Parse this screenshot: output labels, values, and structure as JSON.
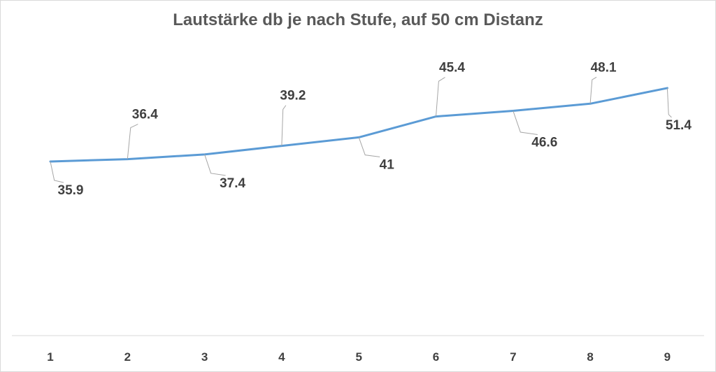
{
  "chart_data": {
    "type": "line",
    "title": "Lautstärke db je nach Stufe, auf 50 cm Distanz",
    "xlabel": "",
    "ylabel": "",
    "categories": [
      "1",
      "2",
      "3",
      "4",
      "5",
      "6",
      "7",
      "8",
      "9"
    ],
    "series": [
      {
        "values": [
          35.9,
          36.4,
          37.4,
          39.2,
          41,
          45.4,
          46.6,
          48.1,
          51.4
        ],
        "data_labels": [
          "35.9",
          "36.4",
          "37.4",
          "39.2",
          "41",
          "45.4",
          "46.6",
          "48.1",
          "51.4"
        ],
        "color": "#5b9bd5"
      }
    ],
    "ylim": [
      0,
      60
    ],
    "grid": false,
    "legend": "none",
    "colors": {
      "line": "#5b9bd5",
      "axis": "#d9d9d9",
      "text": "#404040",
      "leader": "#a6a6a6"
    }
  }
}
